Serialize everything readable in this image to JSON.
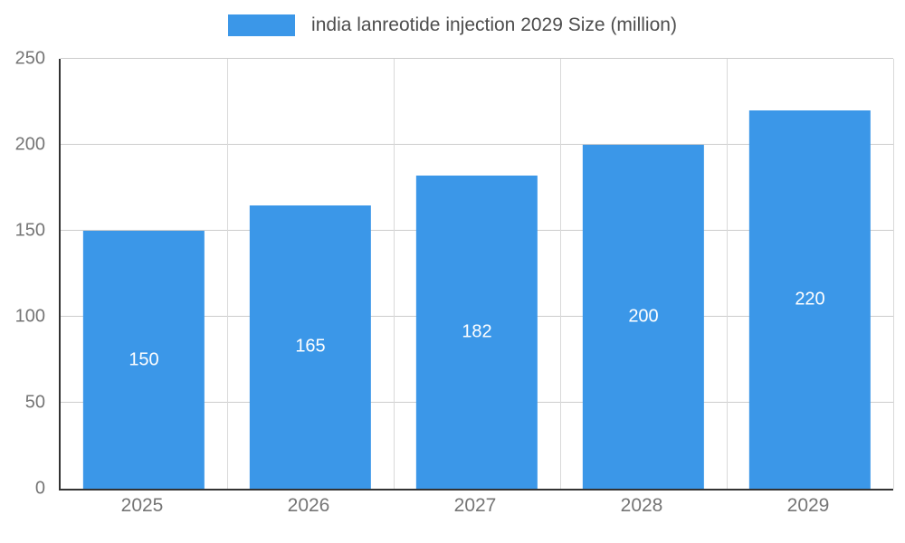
{
  "chart_data": {
    "type": "bar",
    "title": "",
    "legend": "india lanreotide injection 2029 Size (million)",
    "legend_position": "top",
    "categories": [
      "2025",
      "2026",
      "2027",
      "2028",
      "2029"
    ],
    "values": [
      150,
      165,
      182,
      200,
      220
    ],
    "xlabel": "",
    "ylabel": "",
    "ylim": [
      0,
      250
    ],
    "yticks": [
      0,
      50,
      100,
      150,
      200,
      250
    ],
    "grid": true,
    "bar_color": "#3b97e8",
    "value_label_color": "#ffffff",
    "axis_color": "#333333",
    "grid_color": "#cccccc",
    "tick_label_color": "#757575"
  }
}
